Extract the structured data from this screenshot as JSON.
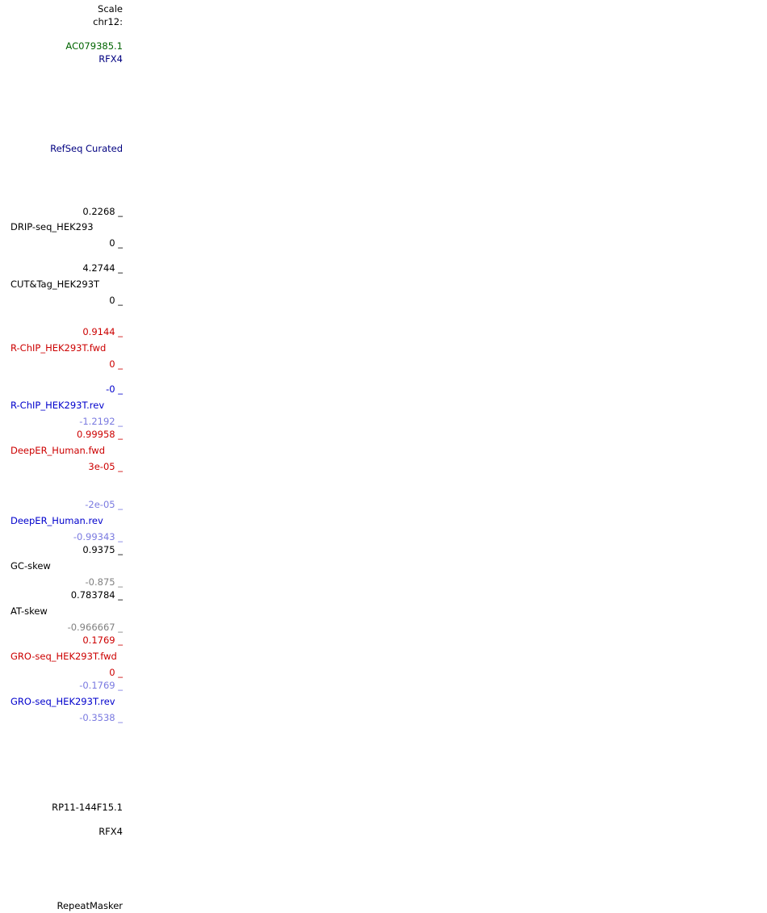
{
  "colors": {
    "default": "#000000",
    "gene_green": "#006400",
    "track_navy": "#000080",
    "forward_red": "#cc0000",
    "reverse_blue": "#0000cc",
    "reverse_light_blue": "#7a7ae0",
    "negative_gray": "#808080"
  },
  "header": {
    "scale": "Scale",
    "chrom": "chr12:"
  },
  "genes_top": {
    "gene1": "AC079385.1",
    "gene2": "RFX4"
  },
  "refseq": {
    "label": "RefSeq Curated"
  },
  "tracks": {
    "drip": {
      "max": "0.2268 _",
      "name": "DRIP-seq_HEK293",
      "min": "0 _"
    },
    "cuttag": {
      "max": "4.2744 _",
      "name": "CUT&Tag_HEK293T",
      "min": "0 _"
    },
    "rchip_fwd": {
      "max": "0.9144 _",
      "name": "R-ChIP_HEK293T.fwd",
      "min": "0 _"
    },
    "rchip_rev": {
      "max": "-0 _",
      "name": "R-ChIP_HEK293T.rev",
      "min": "-1.2192 _"
    },
    "deeper_fwd": {
      "max": "0.99958 _",
      "name": "DeepER_Human.fwd",
      "min": "3e-05 _"
    },
    "deeper_rev": {
      "max": "-2e-05 _",
      "name": "DeepER_Human.rev",
      "min": "-0.99343 _"
    },
    "gcskew": {
      "max": "0.9375 _",
      "name": "GC-skew",
      "min": "-0.875 _"
    },
    "atskew": {
      "max": "0.783784 _",
      "name": "AT-skew",
      "min": "-0.966667 _"
    },
    "gro_fwd": {
      "max": "0.1769 _",
      "name": "GRO-seq_HEK293T.fwd",
      "min": "0 _"
    },
    "gro_rev": {
      "max": "-0.1769 _",
      "name": "GRO-seq_HEK293T.rev",
      "min": "-0.3538 _"
    }
  },
  "genes_bottom": {
    "gene1": "RP11-144F15.1",
    "gene2": "RFX4"
  },
  "repeatmasker": {
    "label": "RepeatMasker"
  }
}
